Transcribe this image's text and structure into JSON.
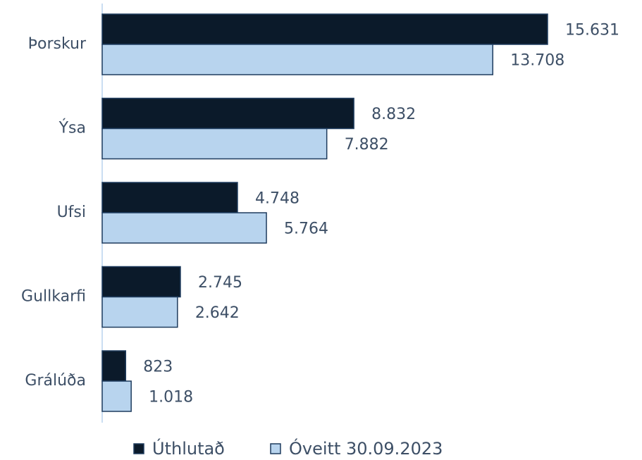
{
  "chart_data": {
    "type": "bar",
    "orientation": "horizontal",
    "categories": [
      "Þorskur",
      "Ýsa",
      "Ufsi",
      "Gullkarfi",
      "Grálúða"
    ],
    "series": [
      {
        "name": "Úthlutað",
        "color": "#0b1a2a",
        "values": [
          15631,
          8832,
          4748,
          2745,
          823
        ],
        "value_labels": [
          "15.631",
          "8.832",
          "4.748",
          "2.745",
          "823"
        ]
      },
      {
        "name": "Óveitt 30.09.2023",
        "color": "#b8d4ee",
        "values": [
          13708,
          7882,
          5764,
          2642,
          1018
        ],
        "value_labels": [
          "13.708",
          "7.882",
          "5.764",
          "2.642",
          "1.018"
        ]
      }
    ],
    "legend": "bottom"
  }
}
